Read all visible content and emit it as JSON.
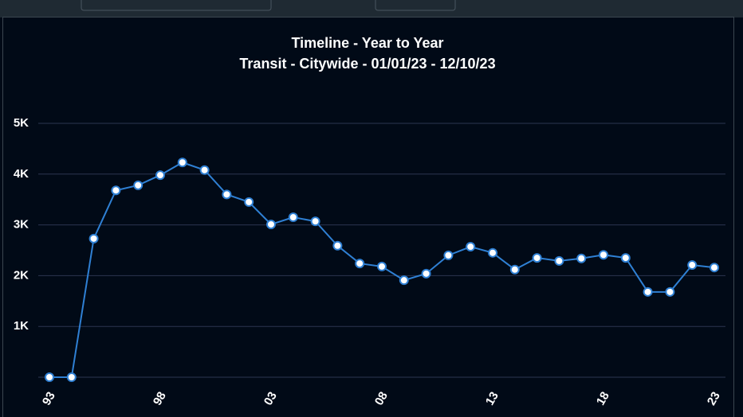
{
  "chart_data": {
    "type": "line",
    "title": "Timeline - Year to Year",
    "subtitle": "Transit - Citywide - 01/01/23 - 12/10/23",
    "categories": [
      "93",
      null,
      null,
      null,
      null,
      "98",
      null,
      null,
      null,
      null,
      "03",
      null,
      null,
      null,
      null,
      "08",
      null,
      null,
      null,
      null,
      "13",
      null,
      null,
      null,
      null,
      "18",
      null,
      null,
      null,
      null,
      "23"
    ],
    "series": [
      {
        "name": null,
        "color": "#2f80d4",
        "values": [
          0,
          0,
          2730,
          3680,
          3780,
          3980,
          4230,
          4080,
          3600,
          3450,
          3010,
          3150,
          3070,
          2590,
          2240,
          2180,
          1910,
          2040,
          2400,
          2570,
          2450,
          2120,
          2350,
          2290,
          2340,
          2410,
          2350,
          1680,
          1680,
          2210,
          2160
        ]
      }
    ],
    "ylim": [
      0,
      5000
    ],
    "yticks": [
      {
        "value": 1000,
        "label": "1K"
      },
      {
        "value": 2000,
        "label": "2K"
      },
      {
        "value": 3000,
        "label": "3K"
      },
      {
        "value": 4000,
        "label": "4K"
      },
      {
        "value": 5000,
        "label": "5K"
      }
    ],
    "grid": true
  }
}
